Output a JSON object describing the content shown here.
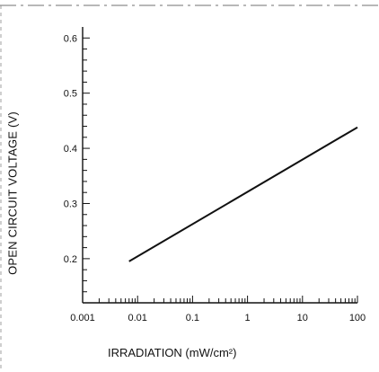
{
  "chart_data": {
    "type": "line",
    "ylabel": "OPEN CIRCUIT VOLTAGE (V)",
    "xlabel": "IRRADIATION (mW/cm²)",
    "xscale": "log",
    "xlim": [
      0.001,
      100
    ],
    "ylim": [
      0.12,
      0.62
    ],
    "x_ticks": [
      "0.001",
      "0.01",
      "0.1",
      "1",
      "10",
      "100"
    ],
    "y_ticks": [
      "0.2",
      "0.3",
      "0.4",
      "0.5",
      "0.6"
    ],
    "series": [
      {
        "x": [
          0.007,
          100
        ],
        "y": [
          0.195,
          0.438
        ]
      }
    ]
  }
}
